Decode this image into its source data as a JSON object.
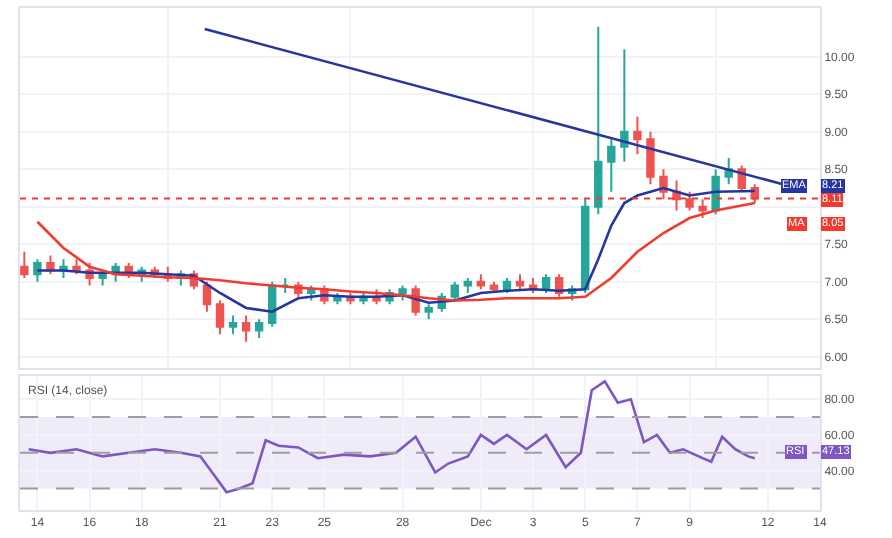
{
  "chart_data": [
    {
      "type": "candlestick",
      "tick_labels": "y",
      "grid": true,
      "legend": "right",
      "x": [
        "--11-13T12:00",
        "--11-14T00:00",
        "--11-14T12:00",
        "--11-15T00:00",
        "--11-15T12:00",
        "--11-16T00:00",
        "--11-16T12:00",
        "--11-17T00:00",
        "--11-17T12:00",
        "--11-18T00:00",
        "--11-18T12:00",
        "--11-19T00:00",
        "--11-19T12:00",
        "--11-20T00:00",
        "--11-20T12:00",
        "--11-21T00:00",
        "--11-21T12:00",
        "--11-22T00:00",
        "--11-22T12:00",
        "--11-23T00:00",
        "--11-23T12:00",
        "--11-24T00:00",
        "--11-24T12:00",
        "--11-25T00:00",
        "--11-25T12:00",
        "--11-26T00:00",
        "--11-26T12:00",
        "--11-27T00:00",
        "--11-27T12:00",
        "--11-28T00:00",
        "--11-28T12:00",
        "--11-29T00:00",
        "--11-29T12:00",
        "--11-30T00:00",
        "--11-30T12:00",
        "--12-01T00:00",
        "--12-01T12:00",
        "--12-02T00:00",
        "--12-02T12:00",
        "--12-03T00:00",
        "--12-03T12:00",
        "--12-04T00:00",
        "--12-04T12:00",
        "--12-05T00:00",
        "--12-05T12:00",
        "--12-06T00:00",
        "--12-06T12:00",
        "--12-07T00:00",
        "--12-07T12:00",
        "--12-08T00:00",
        "--12-08T12:00",
        "--12-09T00:00",
        "--12-09T12:00",
        "--12-10T00:00",
        "--12-10T12:00",
        "--12-11T00:00",
        "--12-11T12:00"
      ],
      "ohlc": [
        [
          7.2,
          7.4,
          7.05,
          7.1
        ],
        [
          7.1,
          7.3,
          7.0,
          7.25
        ],
        [
          7.25,
          7.35,
          7.1,
          7.15
        ],
        [
          7.15,
          7.3,
          7.05,
          7.2
        ],
        [
          7.2,
          7.3,
          7.1,
          7.15
        ],
        [
          7.15,
          7.25,
          6.95,
          7.05
        ],
        [
          7.05,
          7.15,
          6.95,
          7.1
        ],
        [
          7.1,
          7.25,
          7.0,
          7.2
        ],
        [
          7.2,
          7.25,
          7.05,
          7.1
        ],
        [
          7.1,
          7.2,
          7.0,
          7.15
        ],
        [
          7.15,
          7.2,
          7.05,
          7.1
        ],
        [
          7.1,
          7.2,
          7.0,
          7.05
        ],
        [
          7.05,
          7.15,
          6.95,
          7.1
        ],
        [
          7.1,
          7.15,
          6.9,
          6.95
        ],
        [
          6.95,
          7.0,
          6.6,
          6.7
        ],
        [
          6.7,
          6.75,
          6.3,
          6.4
        ],
        [
          6.4,
          6.55,
          6.3,
          6.45
        ],
        [
          6.45,
          6.55,
          6.2,
          6.35
        ],
        [
          6.35,
          6.5,
          6.25,
          6.45
        ],
        [
          6.45,
          7.0,
          6.4,
          6.95
        ],
        [
          6.95,
          7.05,
          6.85,
          6.95
        ],
        [
          6.95,
          7.0,
          6.8,
          6.85
        ],
        [
          6.85,
          6.95,
          6.75,
          6.9
        ],
        [
          6.9,
          6.95,
          6.7,
          6.75
        ],
        [
          6.75,
          6.85,
          6.7,
          6.8
        ],
        [
          6.8,
          6.85,
          6.7,
          6.75
        ],
        [
          6.75,
          6.85,
          6.7,
          6.8
        ],
        [
          6.8,
          6.9,
          6.7,
          6.75
        ],
        [
          6.75,
          6.9,
          6.7,
          6.85
        ],
        [
          6.85,
          6.95,
          6.75,
          6.9
        ],
        [
          6.9,
          6.95,
          6.55,
          6.6
        ],
        [
          6.6,
          6.7,
          6.5,
          6.65
        ],
        [
          6.65,
          6.85,
          6.6,
          6.8
        ],
        [
          6.8,
          7.0,
          6.75,
          6.95
        ],
        [
          6.95,
          7.05,
          6.85,
          7.0
        ],
        [
          7.0,
          7.1,
          6.9,
          6.95
        ],
        [
          6.95,
          7.0,
          6.85,
          6.9
        ],
        [
          6.9,
          7.05,
          6.85,
          7.0
        ],
        [
          7.0,
          7.1,
          6.9,
          6.95
        ],
        [
          6.95,
          7.05,
          6.85,
          6.9
        ],
        [
          6.9,
          7.1,
          6.85,
          7.05
        ],
        [
          7.05,
          7.1,
          6.8,
          6.85
        ],
        [
          6.85,
          6.95,
          6.75,
          6.9
        ],
        [
          6.9,
          8.1,
          6.85,
          8.0
        ],
        [
          8.0,
          10.4,
          7.9,
          8.6
        ],
        [
          8.6,
          8.9,
          8.2,
          8.8
        ],
        [
          8.8,
          10.1,
          8.6,
          9.0
        ],
        [
          9.0,
          9.2,
          8.7,
          8.9
        ],
        [
          8.9,
          9.0,
          8.3,
          8.4
        ],
        [
          8.4,
          8.5,
          8.1,
          8.2
        ],
        [
          8.2,
          8.35,
          7.95,
          8.1
        ],
        [
          8.1,
          8.2,
          7.95,
          8.0
        ],
        [
          8.0,
          8.1,
          7.85,
          7.95
        ],
        [
          7.95,
          8.5,
          7.9,
          8.4
        ],
        [
          8.4,
          8.65,
          8.3,
          8.5
        ],
        [
          8.5,
          8.55,
          8.2,
          8.25
        ],
        [
          8.25,
          8.3,
          8.05,
          8.11
        ]
      ],
      "series": [
        {
          "type": "line",
          "name": "EMA",
          "color": "#2536a0",
          "x": [
            "--11-14",
            "--11-15",
            "--11-16",
            "--11-17",
            "--11-18",
            "--11-19",
            "--11-20",
            "--11-21",
            "--11-22",
            "--11-23",
            "--11-24",
            "--11-25",
            "--11-26",
            "--11-27",
            "--11-28",
            "--11-29",
            "--11-30",
            "--12-01",
            "--12-02",
            "--12-03",
            "--12-04",
            "--12-05",
            "--12-05T12:00",
            "--12-06",
            "--12-06T12:00",
            "--12-07",
            "--12-08",
            "--12-09",
            "--12-10",
            "--12-11T12:00"
          ],
          "values": [
            7.15,
            7.15,
            7.12,
            7.12,
            7.12,
            7.1,
            7.08,
            6.85,
            6.65,
            6.6,
            6.78,
            6.82,
            6.8,
            6.8,
            6.82,
            6.72,
            6.75,
            6.85,
            6.88,
            6.9,
            6.88,
            6.9,
            7.3,
            7.75,
            8.05,
            8.15,
            8.25,
            8.15,
            8.2,
            8.21
          ]
        },
        {
          "type": "line",
          "name": "MA",
          "color": "#f23b2e",
          "x": [
            "--11-14",
            "--11-15",
            "--11-16",
            "--11-17",
            "--11-18",
            "--11-19",
            "--11-20",
            "--11-21",
            "--11-22",
            "--11-23",
            "--11-24",
            "--11-25",
            "--11-26",
            "--11-27",
            "--11-28",
            "--11-29",
            "--11-30",
            "--12-01",
            "--12-02",
            "--12-03",
            "--12-04",
            "--12-05",
            "--12-06",
            "--12-07",
            "--12-08",
            "--12-09",
            "--12-10",
            "--12-11T12:00"
          ],
          "values": [
            7.8,
            7.45,
            7.2,
            7.1,
            7.08,
            7.06,
            7.05,
            7.02,
            6.98,
            6.95,
            6.92,
            6.9,
            6.87,
            6.85,
            6.82,
            6.78,
            6.75,
            6.76,
            6.78,
            6.78,
            6.78,
            6.8,
            7.05,
            7.4,
            7.65,
            7.85,
            7.95,
            8.05
          ]
        },
        {
          "type": "line",
          "color": "#2536a0",
          "x": [
            "--11-20T10:00",
            "--12-13T00:00"
          ],
          "values": [
            10.37,
            8.26
          ]
        }
      ],
      "ref_lines": [
        {
          "axis": "y",
          "value": 8.11,
          "label": "8.11",
          "color": "#f23b2e",
          "line_style": "dotted"
        }
      ],
      "annotations": [
        "8.21",
        "8.05"
      ],
      "xlim": [
        "--11-13T08:00",
        "--12-14T00:00"
      ],
      "ylim": [
        5.85,
        10.65
      ],
      "yticks": [
        {
          "value": 6,
          "label": "6.00"
        },
        {
          "value": 6.5,
          "label": "6.50"
        },
        {
          "value": 7,
          "label": "7.00"
        },
        {
          "value": 7.5,
          "label": "7.50"
        },
        {
          "value": 8,
          "label": null
        },
        {
          "value": 8.5,
          "label": "8.50"
        },
        {
          "value": 9,
          "label": "9.00"
        },
        {
          "value": 9.5,
          "label": "9.50"
        },
        {
          "value": 10,
          "label": "10.00"
        }
      ]
    },
    {
      "type": "line",
      "title": "RSI (14, close)",
      "grid": true,
      "legend": "right",
      "series": [
        {
          "name": "RSI",
          "color": "#7e57c2",
          "x": [
            "--11-13T16:00",
            "--11-14T12:00",
            "--11-15T12:00",
            "--11-16T12:00",
            "--11-17T12:00",
            "--11-18T12:00",
            "--11-19T12:00",
            "--11-20T06:00",
            "--11-20T18:00",
            "--11-21T06:00",
            "--11-21T18:00",
            "--11-22T06:00",
            "--11-22T18:00",
            "--11-23T06:00",
            "--11-24T00:00",
            "--11-24T18:00",
            "--11-25T18:00",
            "--11-26T18:00",
            "--11-27T18:00",
            "--11-28T12:00",
            "--11-29T06:00",
            "--11-29T18:00",
            "--11-30T12:00",
            "--12-01T00:00",
            "--12-01T12:00",
            "--12-02T00:00",
            "--12-02T18:00",
            "--12-03T12:00",
            "--12-04T06:00",
            "--12-04T20:00",
            "--12-05T06:00",
            "--12-05T18:00",
            "--12-06T06:00",
            "--12-06T18:00",
            "--12-07T06:00",
            "--12-07T18:00",
            "--12-08T06:00",
            "--12-08T18:00",
            "--12-09T12:00",
            "--12-09T20:00",
            "--12-10T06:00",
            "--12-10T18:00",
            "--12-11T06:00",
            "--12-11T12:00"
          ],
          "values": [
            52,
            50,
            52,
            48,
            50,
            52,
            50,
            48,
            38,
            28,
            30,
            33,
            57,
            54,
            53,
            47,
            49,
            48,
            50,
            59,
            39,
            44,
            48,
            60,
            55,
            60,
            52,
            60,
            42,
            50,
            85,
            90,
            78,
            80,
            56,
            60,
            50,
            52,
            47,
            45,
            59,
            52,
            48,
            47
          ]
        }
      ],
      "ref_lines": [
        {
          "axis": "y",
          "value": 70,
          "line_style": "dashed"
        },
        {
          "axis": "y",
          "value": 50,
          "line_style": "dashed"
        },
        {
          "axis": "y",
          "value": 30,
          "line_style": "dashed"
        }
      ],
      "bands": [
        {
          "axis": "y",
          "from": 30,
          "to": 70,
          "color": "#7e57c2"
        }
      ],
      "annotations": [
        "47.13"
      ],
      "xlim": [
        "--11-13T08:00",
        "--12-14T00:00"
      ],
      "xticks": [
        {
          "value": "--11-14",
          "label": "14"
        },
        {
          "value": "--11-16",
          "label": "16"
        },
        {
          "value": "--11-18",
          "label": "18"
        },
        {
          "value": "--11-21",
          "label": "21"
        },
        {
          "value": "--11-23",
          "label": "23"
        },
        {
          "value": "--11-25",
          "label": "25"
        },
        {
          "value": "--11-28",
          "label": "28"
        },
        {
          "value": "--12-01",
          "label": "Dec"
        },
        {
          "value": "--12-03",
          "label": "3"
        },
        {
          "value": "--12-05",
          "label": "5"
        },
        {
          "value": "--12-07",
          "label": "7"
        },
        {
          "value": "--12-09",
          "label": "9"
        },
        {
          "value": "--12-12",
          "label": "12"
        },
        {
          "value": "--12-14",
          "label": "14"
        }
      ],
      "ylim": [
        18,
        93
      ],
      "yticks": [
        {
          "value": 40,
          "label": "40.00"
        },
        {
          "value": 60,
          "label": "60.00"
        },
        {
          "value": 80,
          "label": "80.00"
        }
      ]
    }
  ]
}
